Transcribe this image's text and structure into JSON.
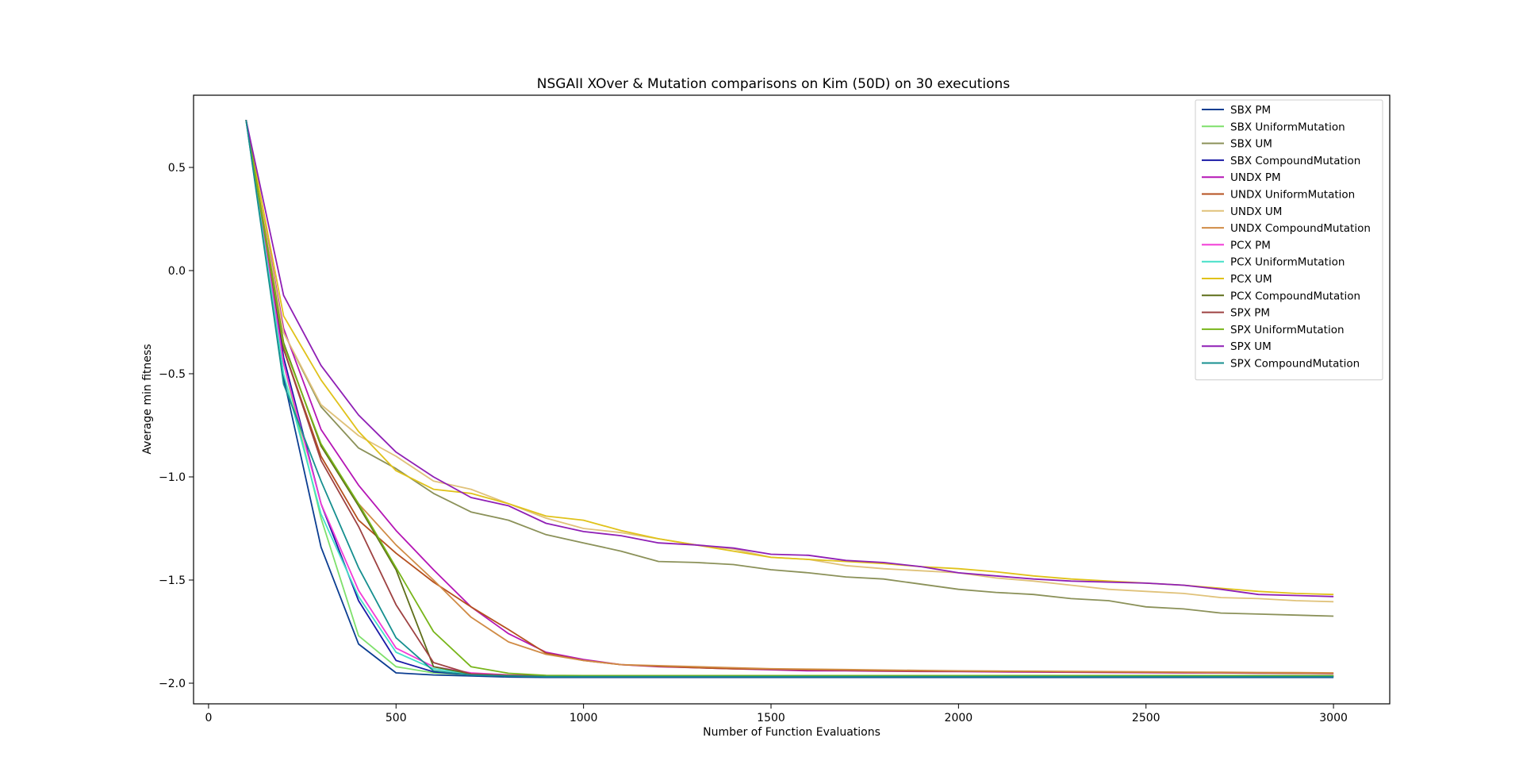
{
  "chart_data": {
    "type": "line",
    "title": "NSGAII XOver & Mutation comparisons on Kim  (50D) on 30 executions",
    "xlabel": "Number of Function Evaluations",
    "ylabel": "Average min fitness",
    "xlim": [
      -40,
      3150
    ],
    "ylim": [
      -2.1,
      0.85
    ],
    "xticks": [
      0,
      500,
      1000,
      1500,
      2000,
      2500,
      3000
    ],
    "yticks": [
      -2.0,
      -1.5,
      -1.0,
      -0.5,
      0.0,
      0.5
    ],
    "xtick_labels": [
      "0",
      "500",
      "1000",
      "1500",
      "2000",
      "2500",
      "3000"
    ],
    "ytick_labels": [
      "−2.0",
      "−1.5",
      "−1.0",
      "−0.5",
      "0.0",
      "0.5"
    ],
    "legend_position": "top-right",
    "grid": false,
    "x": [
      100,
      200,
      300,
      400,
      500,
      600,
      700,
      800,
      900,
      1000,
      1100,
      1200,
      1300,
      1400,
      1500,
      1600,
      1700,
      1800,
      1900,
      2000,
      2100,
      2200,
      2300,
      2400,
      2500,
      2600,
      2700,
      2800,
      2900,
      3000
    ],
    "series": [
      {
        "name": "SBX PM",
        "color": "#0b3d91",
        "values": [
          0.73,
          -0.52,
          -1.34,
          -1.81,
          -1.95,
          -1.96,
          -1.965,
          -1.97,
          -1.972,
          -1.972,
          -1.972,
          -1.972,
          -1.972,
          -1.972,
          -1.972,
          -1.972,
          -1.972,
          -1.972,
          -1.972,
          -1.972,
          -1.972,
          -1.972,
          -1.972,
          -1.972,
          -1.972,
          -1.972,
          -1.972,
          -1.972,
          -1.972,
          -1.972
        ]
      },
      {
        "name": "SBX UniformMutation",
        "color": "#7ee06b",
        "values": [
          0.73,
          -0.45,
          -1.2,
          -1.77,
          -1.92,
          -1.95,
          -1.96,
          -1.965,
          -1.968,
          -1.968,
          -1.968,
          -1.968,
          -1.968,
          -1.968,
          -1.968,
          -1.968,
          -1.968,
          -1.968,
          -1.968,
          -1.968,
          -1.968,
          -1.968,
          -1.968,
          -1.968,
          -1.968,
          -1.968,
          -1.968,
          -1.968,
          -1.968,
          -1.968
        ]
      },
      {
        "name": "SBX UM",
        "color": "#8b9159",
        "values": [
          0.73,
          -0.3,
          -0.66,
          -0.86,
          -0.96,
          -1.08,
          -1.17,
          -1.21,
          -1.28,
          -1.32,
          -1.36,
          -1.41,
          -1.415,
          -1.425,
          -1.45,
          -1.465,
          -1.485,
          -1.495,
          -1.52,
          -1.545,
          -1.56,
          -1.57,
          -1.59,
          -1.6,
          -1.63,
          -1.64,
          -1.66,
          -1.665,
          -1.67,
          -1.675
        ]
      },
      {
        "name": "SBX CompoundMutation",
        "color": "#1a1aa6",
        "values": [
          0.73,
          -0.42,
          -1.13,
          -1.6,
          -1.89,
          -1.945,
          -1.96,
          -1.965,
          -1.968,
          -1.968,
          -1.968,
          -1.968,
          -1.968,
          -1.968,
          -1.968,
          -1.968,
          -1.968,
          -1.968,
          -1.968,
          -1.968,
          -1.968,
          -1.968,
          -1.968,
          -1.968,
          -1.968,
          -1.968,
          -1.968,
          -1.968,
          -1.968,
          -1.968
        ]
      },
      {
        "name": "UNDX PM",
        "color": "#b515b5",
        "values": [
          0.73,
          -0.28,
          -0.77,
          -1.04,
          -1.26,
          -1.45,
          -1.63,
          -1.76,
          -1.85,
          -1.885,
          -1.91,
          -1.92,
          -1.925,
          -1.93,
          -1.935,
          -1.94,
          -1.94,
          -1.942,
          -1.943,
          -1.944,
          -1.945,
          -1.946,
          -1.947,
          -1.948,
          -1.949,
          -1.95,
          -1.95,
          -1.951,
          -1.952,
          -1.953
        ]
      },
      {
        "name": "UNDX UniformMutation",
        "color": "#b5501f",
        "values": [
          0.73,
          -0.38,
          -0.9,
          -1.21,
          -1.37,
          -1.51,
          -1.63,
          -1.74,
          -1.855,
          -1.89,
          -1.91,
          -1.918,
          -1.925,
          -1.93,
          -1.932,
          -1.935,
          -1.937,
          -1.94,
          -1.941,
          -1.942,
          -1.943,
          -1.944,
          -1.945,
          -1.946,
          -1.947,
          -1.948,
          -1.949,
          -1.95,
          -1.951,
          -1.952
        ]
      },
      {
        "name": "UNDX UM",
        "color": "#e0c27a",
        "values": [
          0.73,
          -0.3,
          -0.65,
          -0.8,
          -0.9,
          -1.02,
          -1.06,
          -1.13,
          -1.2,
          -1.25,
          -1.27,
          -1.3,
          -1.33,
          -1.35,
          -1.39,
          -1.4,
          -1.43,
          -1.445,
          -1.455,
          -1.465,
          -1.49,
          -1.505,
          -1.525,
          -1.545,
          -1.555,
          -1.565,
          -1.585,
          -1.59,
          -1.6,
          -1.605
        ]
      },
      {
        "name": "UNDX CompoundMutation",
        "color": "#d08b45",
        "values": [
          0.73,
          -0.35,
          -0.85,
          -1.13,
          -1.33,
          -1.5,
          -1.68,
          -1.8,
          -1.86,
          -1.89,
          -1.91,
          -1.915,
          -1.92,
          -1.925,
          -1.93,
          -1.932,
          -1.934,
          -1.936,
          -1.938,
          -1.94,
          -1.941,
          -1.942,
          -1.943,
          -1.944,
          -1.945,
          -1.946,
          -1.947,
          -1.948,
          -1.949,
          -1.95
        ]
      },
      {
        "name": "PCX PM",
        "color": "#f23bd6",
        "values": [
          0.73,
          -0.45,
          -1.13,
          -1.55,
          -1.83,
          -1.92,
          -1.95,
          -1.96,
          -1.963,
          -1.963,
          -1.963,
          -1.963,
          -1.963,
          -1.963,
          -1.963,
          -1.963,
          -1.963,
          -1.963,
          -1.963,
          -1.963,
          -1.963,
          -1.963,
          -1.963,
          -1.963,
          -1.963,
          -1.963,
          -1.963,
          -1.963,
          -1.963,
          -1.963
        ]
      },
      {
        "name": "PCX UniformMutation",
        "color": "#45e0c8",
        "values": [
          0.73,
          -0.5,
          -1.18,
          -1.58,
          -1.85,
          -1.93,
          -1.955,
          -1.962,
          -1.965,
          -1.965,
          -1.965,
          -1.965,
          -1.965,
          -1.965,
          -1.965,
          -1.965,
          -1.965,
          -1.965,
          -1.965,
          -1.965,
          -1.965,
          -1.965,
          -1.965,
          -1.965,
          -1.965,
          -1.965,
          -1.965,
          -1.965,
          -1.965,
          -1.965
        ]
      },
      {
        "name": "PCX UM",
        "color": "#e0c21a",
        "values": [
          0.73,
          -0.22,
          -0.53,
          -0.78,
          -0.97,
          -1.06,
          -1.08,
          -1.13,
          -1.19,
          -1.21,
          -1.26,
          -1.3,
          -1.33,
          -1.36,
          -1.39,
          -1.4,
          -1.41,
          -1.42,
          -1.435,
          -1.445,
          -1.46,
          -1.48,
          -1.495,
          -1.505,
          -1.515,
          -1.525,
          -1.54,
          -1.555,
          -1.565,
          -1.57
        ]
      },
      {
        "name": "PCX CompoundMutation",
        "color": "#5e6e1a",
        "values": [
          0.73,
          -0.35,
          -0.85,
          -1.14,
          -1.45,
          -1.92,
          -1.955,
          -1.962,
          -1.965,
          -1.965,
          -1.965,
          -1.965,
          -1.965,
          -1.965,
          -1.965,
          -1.965,
          -1.965,
          -1.965,
          -1.965,
          -1.965,
          -1.965,
          -1.965,
          -1.965,
          -1.965,
          -1.965,
          -1.965,
          -1.965,
          -1.965,
          -1.965,
          -1.965
        ]
      },
      {
        "name": "SPX PM",
        "color": "#9e4242",
        "values": [
          0.73,
          -0.38,
          -0.92,
          -1.24,
          -1.62,
          -1.9,
          -1.955,
          -1.962,
          -1.965,
          -1.965,
          -1.965,
          -1.965,
          -1.965,
          -1.965,
          -1.965,
          -1.965,
          -1.965,
          -1.965,
          -1.965,
          -1.965,
          -1.965,
          -1.965,
          -1.965,
          -1.965,
          -1.965,
          -1.965,
          -1.965,
          -1.965,
          -1.965,
          -1.965
        ]
      },
      {
        "name": "SPX UniformMutation",
        "color": "#78b51a",
        "values": [
          0.73,
          -0.36,
          -0.84,
          -1.13,
          -1.44,
          -1.75,
          -1.92,
          -1.952,
          -1.962,
          -1.963,
          -1.963,
          -1.963,
          -1.963,
          -1.963,
          -1.963,
          -1.963,
          -1.963,
          -1.963,
          -1.963,
          -1.963,
          -1.963,
          -1.963,
          -1.963,
          -1.963,
          -1.963,
          -1.963,
          -1.963,
          -1.963,
          -1.963,
          -1.963
        ]
      },
      {
        "name": "SPX UM",
        "color": "#8f1fb5",
        "values": [
          0.73,
          -0.12,
          -0.46,
          -0.7,
          -0.88,
          -1.0,
          -1.1,
          -1.14,
          -1.225,
          -1.265,
          -1.285,
          -1.32,
          -1.33,
          -1.345,
          -1.375,
          -1.38,
          -1.405,
          -1.415,
          -1.435,
          -1.465,
          -1.48,
          -1.495,
          -1.505,
          -1.51,
          -1.515,
          -1.525,
          -1.545,
          -1.57,
          -1.575,
          -1.58
        ]
      },
      {
        "name": "SPX CompoundMutation",
        "color": "#168f8f",
        "values": [
          0.73,
          -0.55,
          -1.02,
          -1.44,
          -1.78,
          -1.94,
          -1.96,
          -1.965,
          -1.968,
          -1.968,
          -1.968,
          -1.968,
          -1.968,
          -1.968,
          -1.968,
          -1.968,
          -1.968,
          -1.968,
          -1.968,
          -1.968,
          -1.968,
          -1.968,
          -1.968,
          -1.968,
          -1.968,
          -1.968,
          -1.968,
          -1.968,
          -1.968,
          -1.968
        ]
      }
    ]
  }
}
